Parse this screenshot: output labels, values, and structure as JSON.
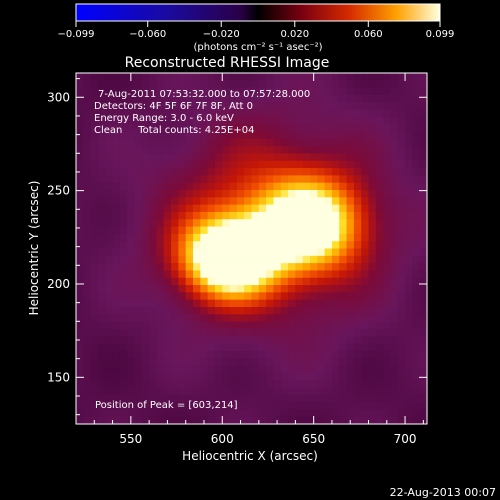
{
  "chart_data": {
    "type": "heatmap",
    "title": "Reconstructed RHESSI Image",
    "xlabel": "Heliocentric X (arcsec)",
    "ylabel": "Heliocentric Y (arcsec)",
    "xlim": [
      520,
      712
    ],
    "ylim": [
      125,
      313
    ],
    "xticks": [
      550,
      600,
      650,
      700
    ],
    "yticks": [
      150,
      200,
      250,
      300
    ],
    "colorbar": {
      "label": "(photons cm⁻² s⁻¹ asec⁻²)",
      "range": [
        -0.099,
        0.099
      ],
      "tick_values": [
        -0.099,
        -0.06,
        -0.02,
        0.02,
        0.06,
        0.099
      ],
      "tick_labels": [
        "−0.099",
        "−0.060",
        "−0.020",
        "0.020",
        "0.060",
        "0.099"
      ]
    },
    "annotations": [
      "7-Aug-2011 07:53:32.000 to 07:57:28.000",
      "Detectors: 4F 5F 6F 7F 8F, Att 0",
      "Energy Range: 3.0 - 6.0 keV",
      "Clean     Total counts: 4.25E+04"
    ],
    "peak_label": "Position of Peak = [603,214]",
    "sources": [
      {
        "x": 603,
        "y": 214,
        "peak": 0.099,
        "sx": 18,
        "sy": 15
      },
      {
        "x": 648,
        "y": 232,
        "peak": 0.078,
        "sx": 20,
        "sy": 17
      },
      {
        "x": 626,
        "y": 232,
        "peak": 0.045,
        "sx": 42,
        "sy": 38
      }
    ]
  },
  "footer": "22-Aug-2013 00:07"
}
